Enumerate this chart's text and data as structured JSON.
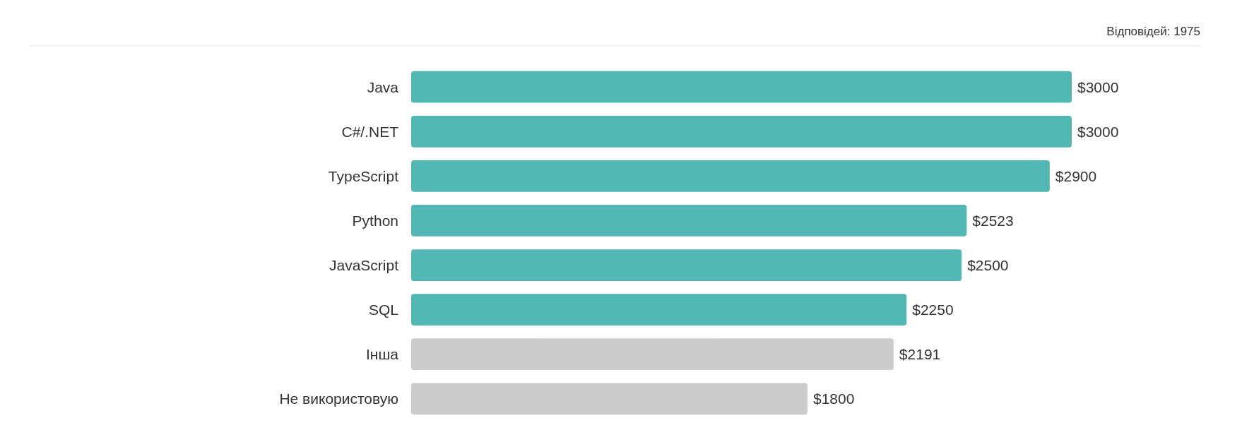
{
  "chart_data": {
    "type": "bar",
    "orientation": "horizontal",
    "categories": [
      "Java",
      "C#/.NET",
      "TypeScript",
      "Python",
      "JavaScript",
      "SQL",
      "Інша",
      "Не використовую"
    ],
    "values": [
      3000,
      3000,
      2900,
      2523,
      2500,
      2250,
      2191,
      1800
    ],
    "colors": [
      "#53b7b3",
      "#53b7b3",
      "#53b7b3",
      "#53b7b3",
      "#53b7b3",
      "#53b7b3",
      "#cccccc",
      "#cccccc"
    ],
    "value_labels": [
      "$3000",
      "$3000",
      "$2900",
      "$2523",
      "$2500",
      "$2250",
      "$2191",
      "$1800"
    ],
    "annotations": [
      "Відповідей: 1975"
    ]
  }
}
